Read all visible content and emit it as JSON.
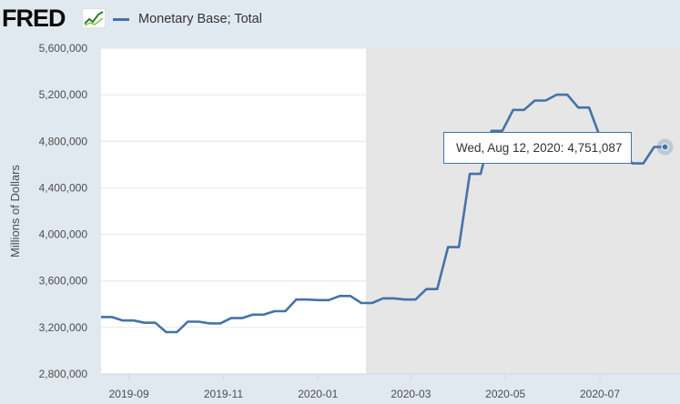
{
  "header": {
    "logo": "FRED",
    "legend_label": "Monetary Base; Total"
  },
  "tooltip": {
    "date": "Wed, Aug 12, 2020:",
    "value": "4,751,087"
  },
  "colors": {
    "series": "#4572a7",
    "recession_shading": "#e6e6e6",
    "background": "#e1e9f0"
  },
  "chart_data": {
    "type": "line",
    "title": "",
    "xlabel": "",
    "ylabel": "Millions of Dollars",
    "ylim": [
      2800000,
      5600000
    ],
    "yticks": [
      2800000,
      3200000,
      3600000,
      4000000,
      4400000,
      4800000,
      5200000,
      5600000
    ],
    "ytick_labels": [
      "2,800,000",
      "3,200,000",
      "3,600,000",
      "4,000,000",
      "4,400,000",
      "4,800,000",
      "5,200,000",
      "5,600,000"
    ],
    "xlim": [
      "2019-08-14",
      "2020-08-17"
    ],
    "xticks": [
      "2019-09-01",
      "2019-11-01",
      "2020-01-01",
      "2020-03-01",
      "2020-05-01",
      "2020-07-01"
    ],
    "xtick_labels": [
      "2019-09",
      "2019-11",
      "2020-01",
      "2020-03",
      "2020-05",
      "2020-07"
    ],
    "grid": true,
    "shaded_region": {
      "label": "recession",
      "start": "2020-02-01",
      "end": "2020-08-17"
    },
    "series": [
      {
        "name": "Monetary Base; Total",
        "x": [
          "2019-08-14",
          "2019-08-21",
          "2019-08-28",
          "2019-09-04",
          "2019-09-11",
          "2019-09-18",
          "2019-09-25",
          "2019-10-02",
          "2019-10-09",
          "2019-10-16",
          "2019-10-23",
          "2019-10-30",
          "2019-11-06",
          "2019-11-13",
          "2019-11-20",
          "2019-11-27",
          "2019-12-04",
          "2019-12-11",
          "2019-12-18",
          "2019-12-25",
          "2020-01-01",
          "2020-01-08",
          "2020-01-15",
          "2020-01-22",
          "2020-01-29",
          "2020-02-05",
          "2020-02-12",
          "2020-02-19",
          "2020-02-26",
          "2020-03-04",
          "2020-03-11",
          "2020-03-18",
          "2020-03-25",
          "2020-04-01",
          "2020-04-08",
          "2020-04-15",
          "2020-04-22",
          "2020-04-29",
          "2020-05-06",
          "2020-05-13",
          "2020-05-20",
          "2020-05-27",
          "2020-06-03",
          "2020-06-10",
          "2020-06-17",
          "2020-06-24",
          "2020-07-01",
          "2020-07-08",
          "2020-07-15",
          "2020-07-22",
          "2020-07-29",
          "2020-08-05",
          "2020-08-12"
        ],
        "values": [
          3290000,
          3290000,
          3260000,
          3260000,
          3240000,
          3240000,
          3160000,
          3160000,
          3250000,
          3250000,
          3235000,
          3235000,
          3280000,
          3280000,
          3310000,
          3310000,
          3340000,
          3340000,
          3440000,
          3440000,
          3435000,
          3435000,
          3470000,
          3470000,
          3410000,
          3410000,
          3450000,
          3450000,
          3440000,
          3440000,
          3530000,
          3530000,
          3890000,
          3890000,
          4520000,
          4520000,
          4890000,
          4890000,
          5070000,
          5070000,
          5150000,
          5150000,
          5200000,
          5200000,
          5090000,
          5090000,
          4840000,
          4840000,
          4720000,
          4610000,
          4610000,
          4751087,
          4751087
        ]
      }
    ]
  }
}
